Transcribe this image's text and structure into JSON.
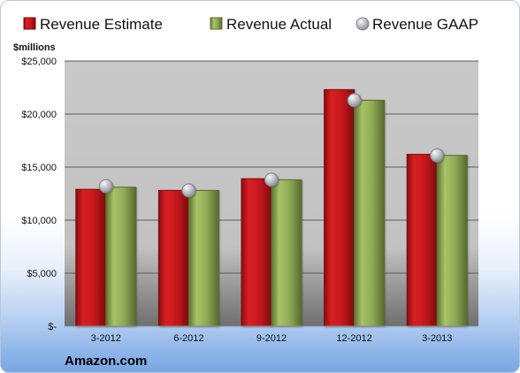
{
  "chart_data": {
    "type": "bar",
    "ylabel": "$millions",
    "ylim": [
      0,
      25000
    ],
    "yticks": [
      0,
      5000,
      10000,
      15000,
      20000,
      25000
    ],
    "ytick_labels": [
      "$-",
      "$5,000",
      "$10,000",
      "$15,000",
      "$20,000",
      "$25,000"
    ],
    "categories": [
      "3-2012",
      "6-2012",
      "9-2012",
      "12-2012",
      "3-2013"
    ],
    "series": [
      {
        "name": "Revenue Estimate",
        "type": "bar",
        "color": "#c8181c",
        "values": [
          12900,
          12800,
          13900,
          22300,
          16200
        ]
      },
      {
        "name": "Revenue Actual",
        "type": "bar",
        "color": "#8faa55",
        "values": [
          13100,
          12800,
          13800,
          21300,
          16100
        ]
      },
      {
        "name": "Revenue GAAP",
        "type": "marker",
        "color": "#9ea3ad",
        "values": [
          13200,
          12800,
          13800,
          21300,
          16100
        ]
      }
    ],
    "grid": true,
    "legend": "top",
    "source": "Amazon.com"
  }
}
